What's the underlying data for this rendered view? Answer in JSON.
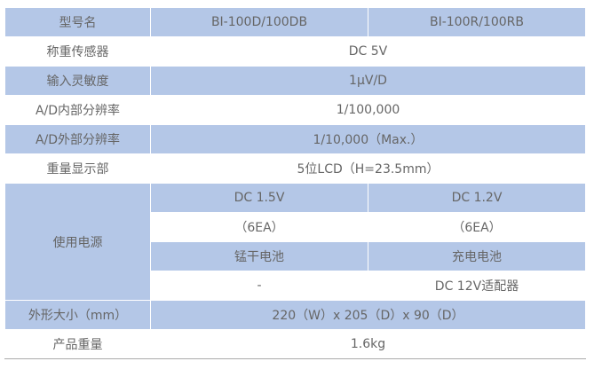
{
  "header": {
    "label": "型号名",
    "model_a": "BI-100D/100DB",
    "model_b": "BI-100R/100RB"
  },
  "rows": {
    "load_cell": {
      "label": "称重传感器",
      "value": "DC 5V"
    },
    "sensitivity": {
      "label": "输入灵敏度",
      "value": "1μV/D"
    },
    "internal_res": {
      "label": "A/D内部分辨率",
      "value": "1/100,000"
    },
    "external_res": {
      "label": "A/D外部分辨率",
      "value": "1/10,000（Max.）"
    },
    "display": {
      "label": "重量显示部",
      "value": "5位LCD（H=23.5mm）"
    },
    "power": {
      "label": "使用电源",
      "voltage_a": "DC 1.5V",
      "voltage_b": "DC 1.2V",
      "count_a": "（6EA）",
      "count_b": "（6EA）",
      "battery_a": "锰干电池",
      "battery_b": "充电电池",
      "adapter_a": "-",
      "adapter_b": "DC 12V适配器"
    },
    "size": {
      "label": "外形大小（mm）",
      "value": "220（W）x 205（D）x 90（D）"
    },
    "weight": {
      "label": "产品重量",
      "value": "1.6kg"
    }
  },
  "colors": {
    "row_fill": "#b4c7e7",
    "text": "#666666"
  }
}
